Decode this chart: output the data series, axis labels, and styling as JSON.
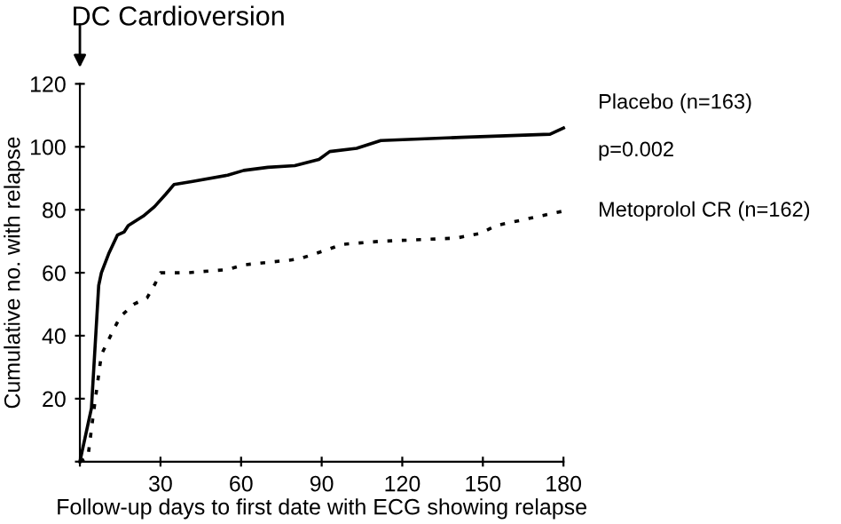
{
  "chart_data": {
    "type": "line",
    "xlabel": "Follow-up days to first date with ECG showing relapse",
    "ylabel": "Cumulative no. with relapse",
    "annotations": [
      "DC Cardioversion",
      "p=0.002"
    ],
    "xlim": [
      0,
      180
    ],
    "xticks": [
      {
        "value": 0,
        "label": null
      },
      30,
      60,
      90,
      120,
      150,
      180
    ],
    "ylim": [
      0,
      120
    ],
    "yticks": [
      {
        "value": 0,
        "label": null
      },
      20,
      40,
      60,
      80,
      100,
      120
    ],
    "grid": false,
    "legend": false,
    "marker": "none",
    "series": [
      {
        "name": "Placebo (n=163)",
        "color": "#000000",
        "line_style": "solid",
        "x": [
          0,
          4.3,
          7,
          8,
          10.7,
          14,
          16.5,
          18,
          23.6,
          27.8,
          32,
          35,
          42,
          55,
          61,
          70,
          80,
          89,
          93,
          103,
          112,
          142,
          175,
          180
        ],
        "values": [
          0,
          17,
          56,
          60,
          66,
          72,
          73,
          75,
          78,
          81,
          85,
          88,
          89,
          91,
          92.5,
          93.5,
          94,
          96,
          98.5,
          99.5,
          102,
          103,
          104,
          106
        ]
      },
      {
        "name": "Metoprolol CR (n=162)",
        "color": "#000000",
        "line_style": "dotted",
        "x": [
          0,
          3,
          5,
          8,
          12,
          15,
          20,
          25,
          28,
          30,
          40,
          55,
          61,
          78,
          82,
          91,
          97.5,
          112,
          140,
          149,
          155,
          180
        ],
        "values": [
          0,
          1.5,
          15,
          34,
          41,
          46,
          50,
          52,
          56.5,
          60,
          60,
          61,
          62.5,
          64,
          64.5,
          67,
          69,
          70,
          71,
          72.5,
          75,
          79.6
        ]
      }
    ]
  }
}
